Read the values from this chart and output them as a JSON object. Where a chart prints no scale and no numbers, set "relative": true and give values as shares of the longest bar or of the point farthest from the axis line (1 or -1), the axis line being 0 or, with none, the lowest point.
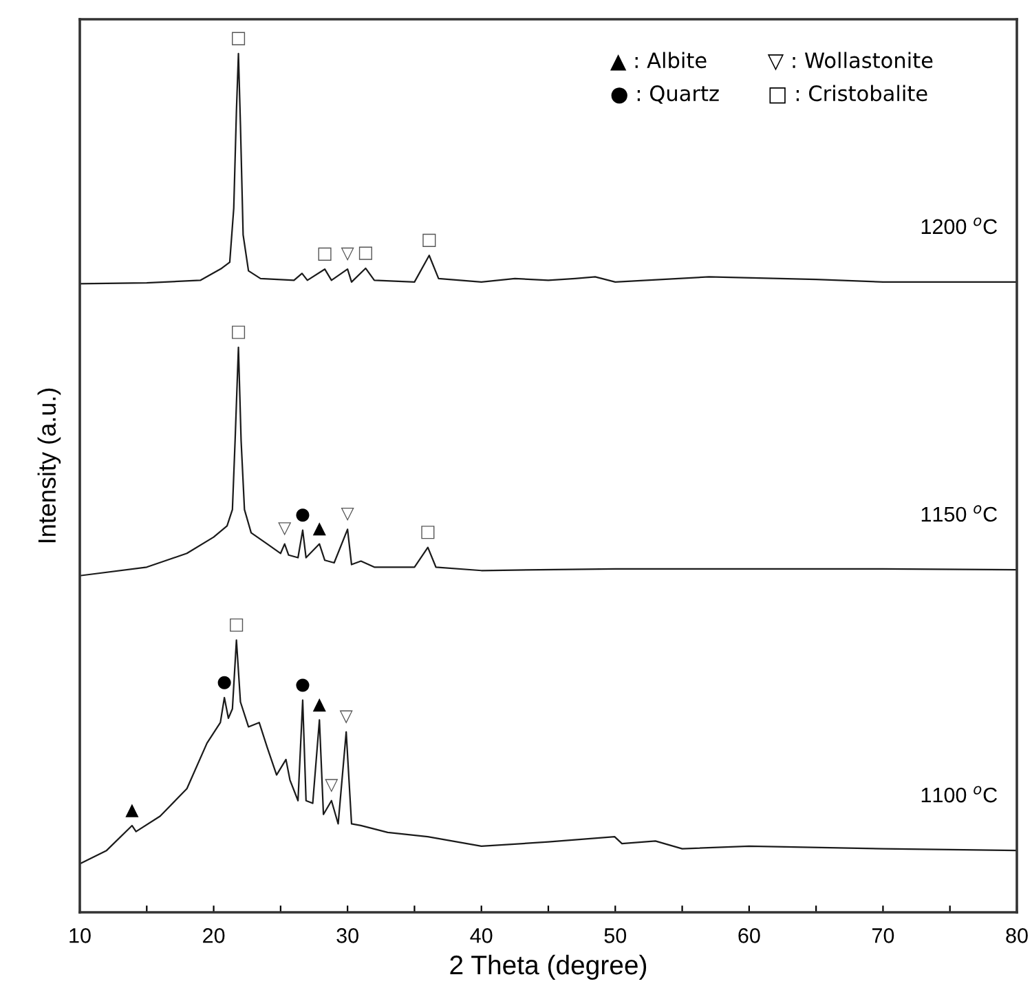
{
  "chart_data": {
    "type": "line",
    "relative": true,
    "xlabel": "2 Theta (degree)",
    "ylabel": "Intensity (a.u.)",
    "xlim": [
      10,
      80
    ],
    "xticks": [
      10,
      {
        "value": 15,
        "label": null
      },
      20,
      {
        "value": 25,
        "label": null
      },
      30,
      {
        "value": 35,
        "label": null
      },
      40,
      {
        "value": 45,
        "label": null
      },
      50,
      {
        "value": 55,
        "label": null
      },
      60,
      {
        "value": 65,
        "label": null
      },
      70,
      {
        "value": 75,
        "label": null
      },
      80
    ],
    "grid": false,
    "legend": false,
    "marker": "none",
    "line_style": "solid",
    "series": [
      {
        "name": "1200 $^{o}$C",
        "color": "#1a1a1a",
        "x": [
          10,
          15,
          19,
          20.6,
          21.2,
          21.5,
          21.7,
          21.85,
          22.0,
          22.2,
          22.6,
          23.5,
          26,
          26.6,
          27,
          28.3,
          28.8,
          30.0,
          30.3,
          31.35,
          32,
          35,
          36.1,
          36.8,
          40,
          42.5,
          45,
          47,
          48.5,
          50,
          57,
          65,
          70,
          80
        ],
        "values": [
          0.732,
          0.733,
          0.736,
          0.75,
          0.757,
          0.82,
          0.933,
          1.0,
          0.917,
          0.789,
          0.747,
          0.738,
          0.736,
          0.744,
          0.736,
          0.749,
          0.736,
          0.749,
          0.734,
          0.75,
          0.736,
          0.734,
          0.765,
          0.738,
          0.734,
          0.738,
          0.736,
          0.738,
          0.74,
          0.734,
          0.74,
          0.737,
          0.734,
          0.734
        ]
      },
      {
        "name": "1150 $^{o}$C",
        "color": "#1a1a1a",
        "x": [
          10,
          15,
          18,
          20,
          21,
          21.4,
          21.6,
          21.85,
          22.05,
          22.3,
          22.8,
          24,
          25.0,
          25.3,
          25.6,
          26.3,
          26.65,
          26.9,
          27.9,
          28.3,
          29,
          30.0,
          30.3,
          31,
          32,
          35,
          36.0,
          36.6,
          40,
          50,
          60,
          70,
          80
        ],
        "values": [
          0.392,
          0.402,
          0.418,
          0.437,
          0.45,
          0.469,
          0.549,
          0.658,
          0.549,
          0.469,
          0.442,
          0.429,
          0.418,
          0.429,
          0.416,
          0.413,
          0.445,
          0.413,
          0.429,
          0.41,
          0.407,
          0.446,
          0.405,
          0.409,
          0.402,
          0.402,
          0.425,
          0.402,
          0.398,
          0.4,
          0.4,
          0.4,
          0.399
        ]
      },
      {
        "name": "1100 $^{o}$C",
        "color": "#1a1a1a",
        "x": [
          10,
          12,
          13.9,
          14.2,
          16,
          18,
          19.5,
          20.5,
          20.8,
          21.1,
          21.4,
          21.7,
          22.0,
          22.6,
          23.4,
          24,
          24.7,
          25.4,
          25.7,
          26.3,
          26.65,
          26.9,
          27.4,
          27.9,
          28.2,
          28.8,
          29.3,
          29.9,
          30.3,
          31,
          33,
          36,
          40,
          45,
          49.95,
          50.5,
          53,
          55,
          60,
          70,
          80
        ],
        "values": [
          0.0565,
          0.072,
          0.101,
          0.094,
          0.112,
          0.144,
          0.197,
          0.221,
          0.25,
          0.226,
          0.237,
          0.317,
          0.245,
          0.216,
          0.221,
          0.192,
          0.16,
          0.178,
          0.154,
          0.13,
          0.247,
          0.13,
          0.127,
          0.224,
          0.114,
          0.13,
          0.103,
          0.21,
          0.103,
          0.101,
          0.093,
          0.088,
          0.077,
          0.082,
          0.088,
          0.08,
          0.083,
          0.074,
          0.077,
          0.074,
          0.072
        ]
      }
    ],
    "annotations": [
      "▲ : Albite",
      "▽ : Wollastonite",
      "● : Quartz",
      "□ : Cristobalite",
      {
        "text": "□",
        "x": 21.85,
        "y": 1.0
      },
      {
        "text": "□",
        "x": 28.3,
        "y": 0.749
      },
      {
        "text": "▽",
        "x": 30.0,
        "y": 0.749
      },
      {
        "text": "□",
        "x": 31.35,
        "y": 0.75
      },
      {
        "text": "□",
        "x": 36.1,
        "y": 0.765
      },
      {
        "text": "□",
        "x": 21.85,
        "y": 0.658
      },
      {
        "text": "▽",
        "x": 25.3,
        "y": 0.429
      },
      {
        "text": "●",
        "x": 26.65,
        "y": 0.445
      },
      {
        "text": "▲",
        "x": 27.9,
        "y": 0.429
      },
      {
        "text": "▽",
        "x": 30.0,
        "y": 0.446
      },
      {
        "text": "□",
        "x": 36.0,
        "y": 0.425
      },
      {
        "text": "▲",
        "x": 13.9,
        "y": 0.101
      },
      {
        "text": "●",
        "x": 20.8,
        "y": 0.25
      },
      {
        "text": "□",
        "x": 21.7,
        "y": 0.317
      },
      {
        "text": "●",
        "x": 26.65,
        "y": 0.247
      },
      {
        "text": "▲",
        "x": 27.9,
        "y": 0.224
      },
      {
        "text": "▽",
        "x": 28.8,
        "y": 0.13
      },
      {
        "text": "▽",
        "x": 29.9,
        "y": 0.21
      }
    ]
  }
}
